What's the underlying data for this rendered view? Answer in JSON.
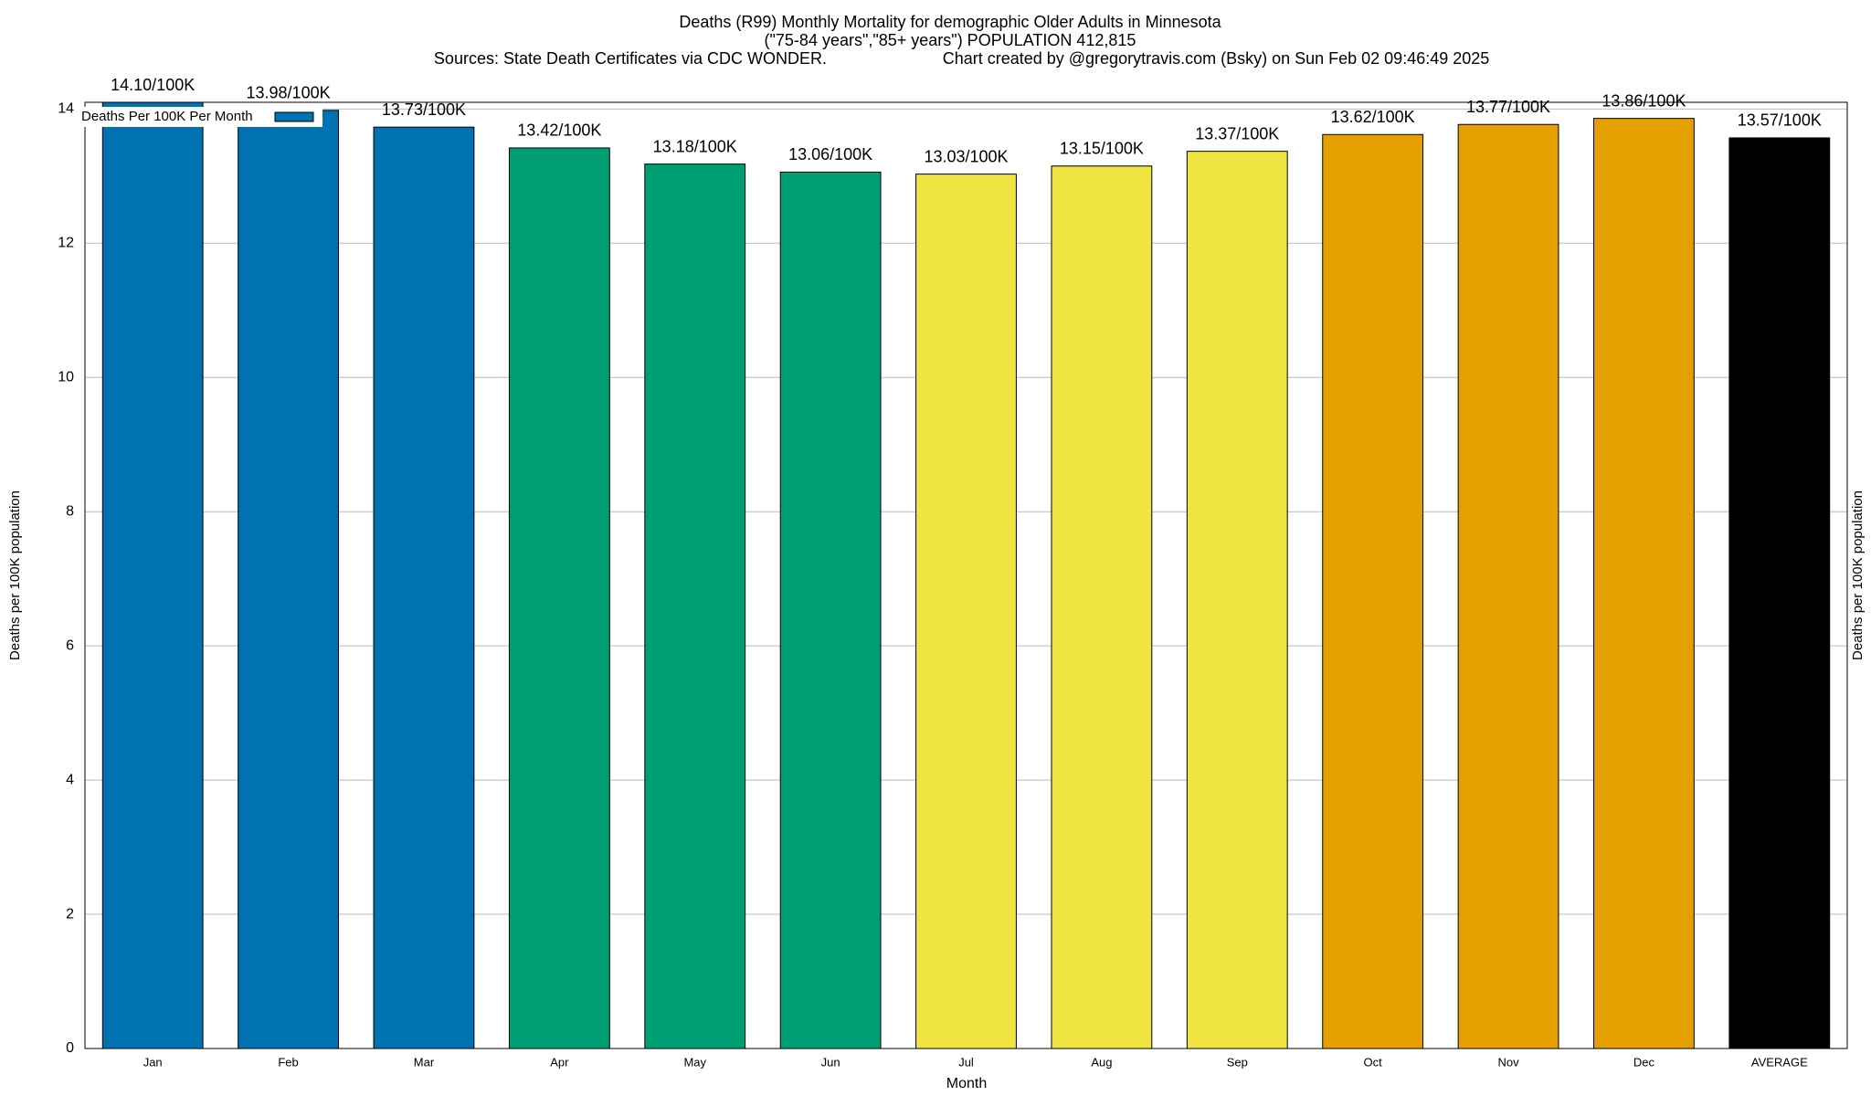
{
  "chart_data": {
    "type": "bar",
    "title": "Deaths (R99) Monthly Mortality for demographic Older Adults in Minnesota",
    "subtitle": "(\"75-84 years\",\"85+ years\") POPULATION 412,815",
    "source": "Sources: State Death Certificates via CDC WONDER.",
    "credit": "Chart created by @gregorytravis.com (Bsky) on Sun Feb 02 09:46:49 2025",
    "x_label": "Month",
    "y_label": "Deaths per 100K population",
    "y2_label": "Deaths per 100K population",
    "categories": [
      "Jan",
      "Feb",
      "Mar",
      "Apr",
      "May",
      "Jun",
      "Jul",
      "Aug",
      "Sep",
      "Oct",
      "Nov",
      "Dec",
      "AVERAGE"
    ],
    "series": [
      {
        "name": "Deaths Per 100K Per Month",
        "color": "#0072b2",
        "colors": [
          "#0072b2",
          "#0072b2",
          "#0072b2",
          "#009e73",
          "#009e73",
          "#009e73",
          "#f0e442",
          "#f0e442",
          "#f0e442",
          "#e69f00",
          "#e69f00",
          "#e69f00",
          "#000000"
        ],
        "values": [
          14.1,
          13.98,
          13.73,
          13.42,
          13.18,
          13.06,
          13.03,
          13.15,
          13.37,
          13.62,
          13.77,
          13.86,
          13.57
        ],
        "value_labels": [
          "14.10/100K",
          "13.98/100K",
          "13.73/100K",
          "13.42/100K",
          "13.18/100K",
          "13.06/100K",
          "13.03/100K",
          "13.15/100K",
          "13.37/100K",
          "13.62/100K",
          "13.77/100K",
          "13.86/100K",
          "13.57/100K"
        ]
      }
    ],
    "ylim": [
      0,
      14.1
    ],
    "yticks": [
      0,
      2,
      4,
      6,
      8,
      10,
      12,
      14
    ],
    "grid": true,
    "legend": "top-left"
  }
}
